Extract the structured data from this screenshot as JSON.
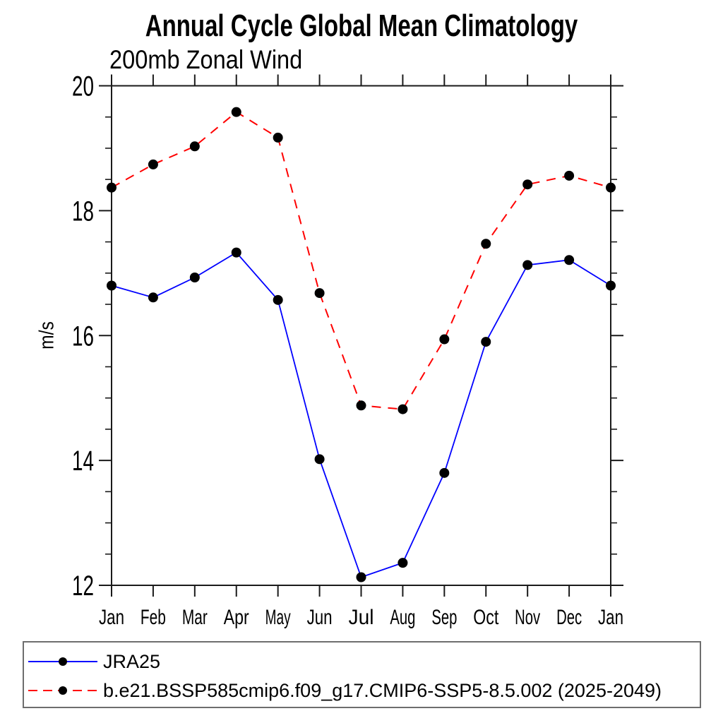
{
  "chart_data": {
    "type": "line",
    "title": "Annual Cycle Global Mean Climatology",
    "subtitle": "200mb Zonal Wind",
    "xlabel": "",
    "ylabel": "m/s",
    "x_tick_labels": [
      "Jan",
      "Feb",
      "Mar",
      "Apr",
      "May",
      "Jun",
      "Jul",
      "Aug",
      "Sep",
      "Oct",
      "Nov",
      "Dec",
      "Jan"
    ],
    "ylim": [
      12,
      20
    ],
    "y_major_ticks": [
      12,
      14,
      16,
      18,
      20
    ],
    "y_minor_step": 0.5,
    "grid": false,
    "legend_position": "bottom-left-box",
    "frame_color": "#1a1a1a",
    "series": [
      {
        "name": "JRA25",
        "color": "#0000ff",
        "line_style": "solid",
        "marker": "filled-circle",
        "marker_color": "#000000",
        "values": [
          16.8,
          16.61,
          16.93,
          17.33,
          16.57,
          14.02,
          12.13,
          12.36,
          13.8,
          15.9,
          17.13,
          17.21,
          16.8
        ]
      },
      {
        "name": "b.e21.BSSP585cmip6.f09_g17.CMIP6-SSP5-8.5.002 (2025-2049)",
        "color": "#ff0000",
        "line_style": "dashed",
        "marker": "filled-circle",
        "marker_color": "#000000",
        "values": [
          18.37,
          18.74,
          19.03,
          19.58,
          19.17,
          16.68,
          14.88,
          14.82,
          15.94,
          17.47,
          18.42,
          18.56,
          18.37
        ]
      }
    ]
  }
}
